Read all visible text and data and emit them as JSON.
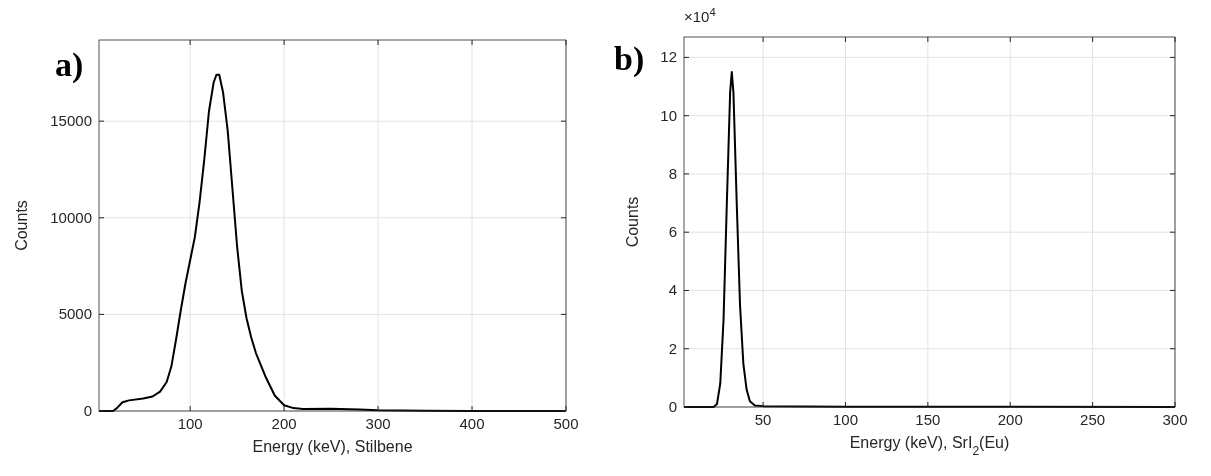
{
  "chart_data": [
    {
      "type": "line",
      "title": "a)",
      "xlabel": "Energy (keV), Stilbene",
      "ylabel": "Counts",
      "xlim": [
        3,
        500
      ],
      "ylim": [
        0,
        19200
      ],
      "xticks": [
        100,
        200,
        300,
        400,
        500
      ],
      "yticks": [
        0,
        5000,
        10000,
        15000
      ],
      "grid": true,
      "line_style": "solid",
      "series": [
        {
          "color": "#000000",
          "x": [
            3,
            18,
            22,
            28,
            35,
            50,
            60,
            68,
            75,
            80,
            85,
            90,
            95,
            100,
            105,
            110,
            115,
            120,
            125,
            128,
            131,
            135,
            140,
            145,
            150,
            155,
            160,
            165,
            170,
            180,
            190,
            200,
            210,
            220,
            250,
            280,
            300,
            350,
            400,
            500
          ],
          "values": [
            0,
            0,
            150,
            450,
            550,
            650,
            750,
            1000,
            1500,
            2300,
            3700,
            5200,
            6600,
            7800,
            9000,
            10800,
            13000,
            15500,
            17000,
            17400,
            17400,
            16500,
            14500,
            11500,
            8500,
            6200,
            4800,
            3800,
            3000,
            1800,
            800,
            300,
            150,
            100,
            120,
            80,
            40,
            10,
            5,
            0
          ]
        }
      ]
    },
    {
      "type": "line",
      "title": "b)",
      "xlabel": "Energy (keV), SrI$_{2}$(Eu)",
      "ylabel": "Counts",
      "annotations": [
        "×10$^{4}$"
      ],
      "xlim": [
        2,
        300
      ],
      "ylim": [
        0,
        12.7
      ],
      "xticks": [
        50,
        100,
        150,
        200,
        250,
        300
      ],
      "yticks": [
        0,
        2,
        4,
        6,
        8,
        10,
        12
      ],
      "grid": true,
      "line_style": "solid",
      "series": [
        {
          "color": "#000000",
          "x": [
            2,
            20,
            22,
            24,
            26,
            28,
            30,
            31,
            32,
            34,
            36,
            38,
            40,
            42,
            45,
            50,
            100,
            300
          ],
          "values": [
            0,
            0,
            0.1,
            0.8,
            3,
            7,
            10.8,
            11.5,
            10.8,
            7,
            3.5,
            1.5,
            0.6,
            0.2,
            0.05,
            0.03,
            0.01,
            0
          ]
        }
      ]
    }
  ]
}
